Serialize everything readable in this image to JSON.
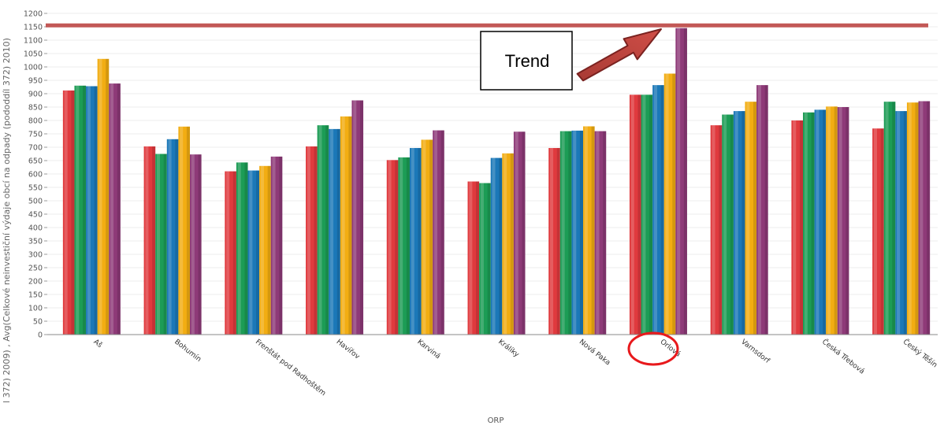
{
  "chart_data": {
    "type": "bar",
    "title": "",
    "xlabel": "ORP",
    "ylabel": "l 372) 2009) , Avg(Celkové neinvestiční výdaje obcí na odpady (pododdíl 372) 2010)",
    "ylim": [
      0,
      1200
    ],
    "ytick_step": 50,
    "grid": true,
    "categories": [
      "Aš",
      "Bohumín",
      "Frenštát pod Radhoštěm",
      "Havířov",
      "Karviná",
      "Králíky",
      "Nová Paka",
      "Orlová",
      "Varnsdorf",
      "Česká Třebová",
      "Český Těšín"
    ],
    "series": [
      {
        "color": "#e03a3e",
        "values": [
          912,
          703,
          610,
          703,
          652,
          572,
          697,
          896,
          782,
          800,
          770
        ]
      },
      {
        "color": "#1c9c55",
        "values": [
          930,
          675,
          643,
          782,
          662,
          566,
          760,
          896,
          822,
          830,
          870
        ]
      },
      {
        "color": "#1b78b8",
        "values": [
          928,
          730,
          613,
          768,
          697,
          660,
          762,
          932,
          835,
          840,
          835
        ]
      },
      {
        "color": "#f2ad12",
        "values": [
          1030,
          777,
          630,
          815,
          728,
          677,
          778,
          975,
          870,
          852,
          867
        ]
      },
      {
        "color": "#8e3a78",
        "values": [
          938,
          673,
          665,
          875,
          763,
          758,
          760,
          1145,
          932,
          850,
          872
        ]
      }
    ],
    "annotations": {
      "trend_label": "Trend",
      "trend_line_value": 1155,
      "highlighted_category": "Orlová"
    }
  }
}
